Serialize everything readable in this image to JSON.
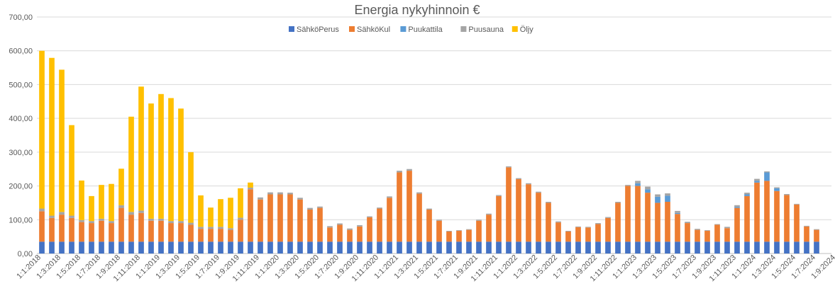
{
  "chart_data": {
    "type": "bar",
    "stacked": true,
    "title": "Energia nykyhinnoin €",
    "xlabel": "",
    "ylabel": "",
    "ylim": [
      0,
      700
    ],
    "y_ticks": [
      "0,00",
      "100,00",
      "200,00",
      "300,00",
      "400,00",
      "500,00",
      "600,00",
      "700,00"
    ],
    "y_tick_values": [
      0,
      100,
      200,
      300,
      400,
      500,
      600,
      700
    ],
    "grid": "horizontal",
    "legend_position": "top",
    "categories": [
      "1:1:2018",
      "1:2:2018",
      "1:3:2018",
      "1:4:2018",
      "1:5:2018",
      "1:6:2018",
      "1:7:2018",
      "1:8:2018",
      "1:9:2018",
      "1:10:2018",
      "1:11:2018",
      "1:12:2018",
      "1:1:2019",
      "1:2:2019",
      "1:3:2019",
      "1:4:2019",
      "1:5:2019",
      "1:6:2019",
      "1:7:2019",
      "1:8:2019",
      "1:9:2019",
      "1:10:2019",
      "1:11:2019",
      "1:12:2019",
      "1:1:2020",
      "1:2:2020",
      "1:3:2020",
      "1:4:2020",
      "1:5:2020",
      "1:6:2020",
      "1:7:2020",
      "1:8:2020",
      "1:9:2020",
      "1:10:2020",
      "1:11:2020",
      "1:12:2020",
      "1:1:2021",
      "1:2:2021",
      "1:3:2021",
      "1:4:2021",
      "1:5:2021",
      "1:6:2021",
      "1:7:2021",
      "1:8:2021",
      "1:9:2021",
      "1:10:2021",
      "1:11:2021",
      "1:12:2021",
      "1:1:2022",
      "1:2:2022",
      "1:3:2022",
      "1:4:2022",
      "1:5:2022",
      "1:6:2022",
      "1:7:2022",
      "1:8:2022",
      "1:9:2022",
      "1:10:2022",
      "1:11:2022",
      "1:12:2022",
      "1:1:2023",
      "1:2:2023",
      "1:3:2023",
      "1:4:2023",
      "1:5:2023",
      "1:6:2023",
      "1:7:2023",
      "1:8:2023",
      "1:9:2023",
      "1:10:2023",
      "1:11:2023",
      "1:12:2023",
      "1:1:2024",
      "1:2:2024",
      "1:3:2024",
      "1:4:2024",
      "1:5:2024",
      "1:6:2024",
      "1:7:2024",
      "1:8:2024"
    ],
    "x_tick_labels": [
      "1:1:2018",
      "1:3:2018",
      "1:5:2018",
      "1:7:2018",
      "1:9:2018",
      "1:11:2018",
      "1:1:2019",
      "1:3:2019",
      "1:5:2019",
      "1:7:2019",
      "1:9:2019",
      "1:11:2019",
      "1:1:2020",
      "1:3:2020",
      "1:5:2020",
      "1:7:2020",
      "1:9:2020",
      "1:11:2020",
      "1:1:2021",
      "1:3:2021",
      "1:5:2021",
      "1:7:2021",
      "1:9:2021",
      "1:11:2021",
      "1:1:2022",
      "1:3:2022",
      "1:5:2022",
      "1:7:2022",
      "1:9:2022",
      "1:11:2022",
      "1:1:2023",
      "1:3:2023",
      "1:5:2023",
      "1:7:2023",
      "1:9:2023",
      "1:11:2023",
      "1:1:2024",
      "1:3:2024",
      "1:5:2024",
      "1:7:2024",
      "1:9:2024"
    ],
    "series": [
      {
        "name": "SähköPerus",
        "color": "#4472c4",
        "values": [
          35,
          35,
          35,
          35,
          35,
          35,
          35,
          35,
          35,
          35,
          35,
          35,
          35,
          35,
          35,
          35,
          35,
          35,
          35,
          35,
          35,
          35,
          35,
          35,
          35,
          35,
          35,
          35,
          35,
          35,
          35,
          35,
          35,
          35,
          35,
          35,
          35,
          35,
          35,
          35,
          35,
          35,
          35,
          35,
          35,
          35,
          35,
          35,
          35,
          35,
          35,
          35,
          35,
          35,
          35,
          35,
          35,
          35,
          35,
          35,
          35,
          35,
          35,
          35,
          35,
          35,
          35,
          35,
          35,
          35,
          35,
          35,
          35,
          35,
          35,
          35,
          35,
          35,
          35,
          0
        ]
      },
      {
        "name": "SähköKul",
        "color": "#ed7d31",
        "values": [
          90,
          70,
          80,
          70,
          58,
          55,
          62,
          55,
          100,
          80,
          85,
          62,
          62,
          55,
          55,
          50,
          38,
          38,
          38,
          35,
          65,
          155,
          125,
          140,
          140,
          140,
          125,
          95,
          100,
          42,
          50,
          35,
          45,
          72,
          98,
          130,
          205,
          210,
          142,
          95,
          62,
          30,
          32,
          35,
          62,
          80,
          135,
          220,
          185,
          170,
          145,
          115,
          57,
          30,
          43,
          42,
          52,
          70,
          115,
          165,
          165,
          145,
          115,
          118,
          82,
          55,
          35,
          32,
          50,
          40,
          100,
          135,
          175,
          180,
          150,
          138,
          110,
          45,
          35,
          0
        ]
      },
      {
        "name": "Puukattila",
        "color": "#5b9bd5",
        "values": [
          0,
          0,
          0,
          0,
          0,
          0,
          0,
          0,
          0,
          0,
          0,
          0,
          0,
          0,
          0,
          0,
          0,
          0,
          0,
          0,
          0,
          0,
          0,
          0,
          0,
          0,
          0,
          0,
          0,
          0,
          0,
          0,
          0,
          0,
          0,
          0,
          0,
          0,
          0,
          0,
          0,
          0,
          0,
          0,
          0,
          0,
          0,
          0,
          0,
          0,
          0,
          0,
          0,
          0,
          0,
          0,
          0,
          0,
          0,
          0,
          8,
          10,
          18,
          18,
          3,
          0,
          0,
          0,
          0,
          0,
          3,
          5,
          5,
          25,
          8,
          0,
          0,
          0,
          0,
          0
        ]
      },
      {
        "name": "Puusauna",
        "color": "#a5a5a5",
        "values": [
          8,
          7,
          8,
          7,
          6,
          6,
          6,
          6,
          8,
          8,
          7,
          6,
          6,
          6,
          6,
          6,
          6,
          6,
          6,
          5,
          6,
          5,
          6,
          6,
          6,
          5,
          5,
          5,
          4,
          4,
          4,
          4,
          4,
          3,
          3,
          4,
          5,
          5,
          4,
          3,
          3,
          2,
          2,
          2,
          3,
          3,
          3,
          3,
          3,
          3,
          3,
          3,
          3,
          2,
          2,
          2,
          3,
          3,
          3,
          3,
          7,
          8,
          7,
          7,
          6,
          4,
          3,
          2,
          2,
          4,
          5,
          5,
          6,
          3,
          3,
          3,
          2,
          2,
          2,
          0
        ]
      },
      {
        "name": "Öljy",
        "color": "#ffc000",
        "values": [
          467,
          467,
          421,
          268,
          117,
          74,
          100,
          110,
          108,
          282,
          367,
          341,
          369,
          364,
          333,
          209,
          93,
          57,
          82,
          90,
          87,
          15,
          0,
          0,
          0,
          0,
          0,
          0,
          0,
          0,
          0,
          0,
          0,
          0,
          0,
          0,
          0,
          0,
          0,
          0,
          0,
          0,
          0,
          0,
          0,
          0,
          0,
          0,
          0,
          0,
          0,
          0,
          0,
          0,
          0,
          0,
          0,
          0,
          0,
          0,
          0,
          0,
          0,
          0,
          0,
          0,
          0,
          0,
          0,
          0,
          0,
          0,
          0,
          0,
          0,
          0,
          0,
          0,
          0,
          0
        ]
      }
    ]
  }
}
